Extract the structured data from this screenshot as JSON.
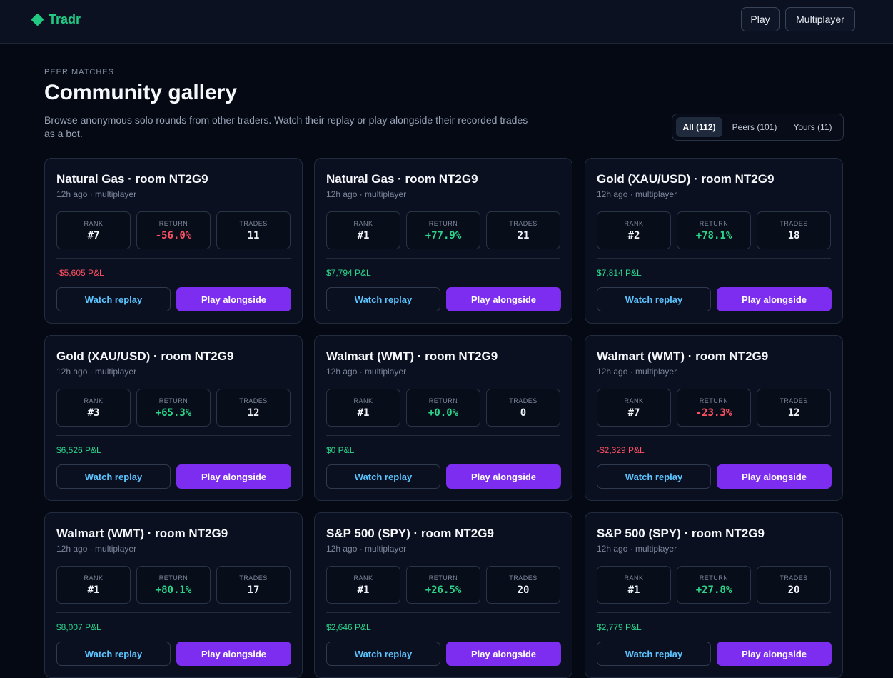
{
  "brand": {
    "name": "Tradr",
    "icon": "diamond-logo-icon",
    "color": "#22c983"
  },
  "nav": {
    "play_label": "Play",
    "multiplayer_label": "Multiplayer"
  },
  "header": {
    "eyebrow": "PEER MATCHES",
    "title": "Community gallery",
    "description": "Browse anonymous solo rounds from other traders. Watch their replay or play alongside their recorded trades as a bot."
  },
  "filters": [
    {
      "label": "All (112)",
      "active": true
    },
    {
      "label": "Peers (101)",
      "active": false
    },
    {
      "label": "Yours (11)",
      "active": false
    }
  ],
  "labels": {
    "rank": "RANK",
    "return": "RETURN",
    "trades": "TRADES",
    "watch": "Watch replay",
    "play": "Play alongside"
  },
  "colors": {
    "accent": "#7c2df0",
    "positive": "#2bd68a",
    "negative": "#ff4f63",
    "link": "#5cc4ff"
  },
  "cards": [
    {
      "title": "Natural Gas · room NT2G9",
      "meta": "12h ago · multiplayer",
      "rank": "#7",
      "return": "-56.0%",
      "trades": "11",
      "pnl": "-$5,605 P&L",
      "sign": "neg"
    },
    {
      "title": "Natural Gas · room NT2G9",
      "meta": "12h ago · multiplayer",
      "rank": "#1",
      "return": "+77.9%",
      "trades": "21",
      "pnl": "$7,794 P&L",
      "sign": "pos"
    },
    {
      "title": "Gold (XAU/USD) · room NT2G9",
      "meta": "12h ago · multiplayer",
      "rank": "#2",
      "return": "+78.1%",
      "trades": "18",
      "pnl": "$7,814 P&L",
      "sign": "pos"
    },
    {
      "title": "Gold (XAU/USD) · room NT2G9",
      "meta": "12h ago · multiplayer",
      "rank": "#3",
      "return": "+65.3%",
      "trades": "12",
      "pnl": "$6,526 P&L",
      "sign": "pos"
    },
    {
      "title": "Walmart (WMT) · room NT2G9",
      "meta": "12h ago · multiplayer",
      "rank": "#1",
      "return": "+0.0%",
      "trades": "0",
      "pnl": "$0 P&L",
      "sign": "pos"
    },
    {
      "title": "Walmart (WMT) · room NT2G9",
      "meta": "12h ago · multiplayer",
      "rank": "#7",
      "return": "-23.3%",
      "trades": "12",
      "pnl": "-$2,329 P&L",
      "sign": "neg"
    },
    {
      "title": "Walmart (WMT) · room NT2G9",
      "meta": "12h ago · multiplayer",
      "rank": "#1",
      "return": "+80.1%",
      "trades": "17",
      "pnl": "$8,007 P&L",
      "sign": "pos"
    },
    {
      "title": "S&P 500 (SPY) · room NT2G9",
      "meta": "12h ago · multiplayer",
      "rank": "#1",
      "return": "+26.5%",
      "trades": "20",
      "pnl": "$2,646 P&L",
      "sign": "pos"
    },
    {
      "title": "S&P 500 (SPY) · room NT2G9",
      "meta": "12h ago · multiplayer",
      "rank": "#1",
      "return": "+27.8%",
      "trades": "20",
      "pnl": "$2,779 P&L",
      "sign": "pos"
    }
  ]
}
